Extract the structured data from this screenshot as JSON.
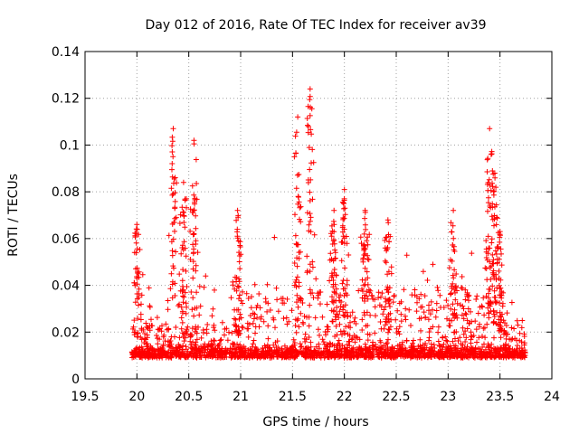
{
  "chart_data": {
    "type": "scatter",
    "title": "Day 012 of 2016, Rate Of TEC Index for receiver av39",
    "xlabel": "GPS time / hours",
    "ylabel": "ROTI / TECUs",
    "xlim": [
      19.5,
      24
    ],
    "ylim": [
      0,
      0.14
    ],
    "xticks": [
      "19.5",
      "20",
      "20.5",
      "21",
      "21.5",
      "22",
      "22.5",
      "23",
      "23.5",
      "24"
    ],
    "yticks": [
      "0",
      "0.02",
      "0.04",
      "0.06",
      "0.08",
      "0.1",
      "0.12",
      "0.14"
    ],
    "grid": true,
    "marker": "+",
    "series_color": "#ff0000",
    "time_range": [
      19.95,
      23.75
    ],
    "baseline_level": 0.009,
    "baseline_spread": 0.006,
    "peaks": [
      {
        "x": 20.0,
        "y": 0.066
      },
      {
        "x": 20.35,
        "y": 0.107
      },
      {
        "x": 20.45,
        "y": 0.084
      },
      {
        "x": 20.55,
        "y": 0.102
      },
      {
        "x": 20.97,
        "y": 0.072
      },
      {
        "x": 21.55,
        "y": 0.112
      },
      {
        "x": 21.67,
        "y": 0.124
      },
      {
        "x": 21.9,
        "y": 0.072
      },
      {
        "x": 22.0,
        "y": 0.081
      },
      {
        "x": 22.2,
        "y": 0.072
      },
      {
        "x": 22.42,
        "y": 0.068
      },
      {
        "x": 23.05,
        "y": 0.072
      },
      {
        "x": 23.4,
        "y": 0.107
      },
      {
        "x": 23.45,
        "y": 0.088
      },
      {
        "x": 23.5,
        "y": 0.063
      }
    ],
    "point_count": 2200
  }
}
